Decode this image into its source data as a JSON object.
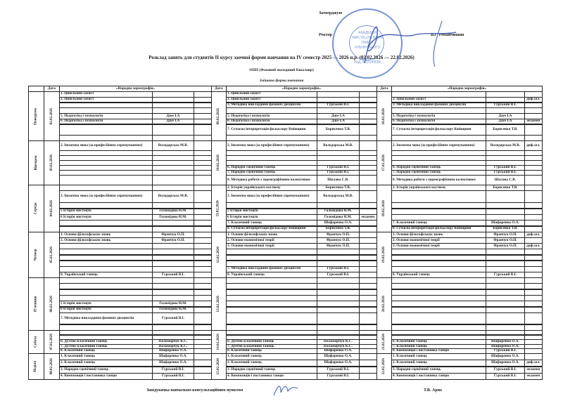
{
  "header": {
    "approve": "Затверджую",
    "rector_label": "Ректор",
    "rector_name": "В.Г. Романчишин",
    "title": "Розклад занять для студентів ІІ курсу заочної форми навчання на  IV семестр 2025 — 2026 н.р. (02.02.2026 — 22.02.2026)",
    "program": "ОПП (Фаховий молодший бакалавр)",
    "form": "Змішана форма навчання"
  },
  "stamp": {
    "text": "АКАДЕМІЯ МИСТЕЦТВ ІМЕНІ ПАВЛА ЧУБИНСЬКОГО",
    "code": "код 02214938",
    "color": "#4a73c7"
  },
  "table": {
    "date_header": "Дата",
    "group_header": "«Народна хореографія»",
    "days": [
      "Понеділок",
      "Вівторок",
      "Середа",
      "Четвер",
      "П'ятниця",
      "Субота",
      "Неділя"
    ],
    "weeks": [
      {
        "dates": [
          "02.02.2026",
          "03.02.2026",
          "04.02.2026",
          "05.02.2026",
          "06.02.2026",
          "07.02.2026",
          "08.02.2026"
        ],
        "rows": [
          [
            [
              "1. Цивільний захист",
              "",
              ""
            ],
            [
              "2. Цивільний захист",
              "",
              ""
            ],
            [
              "",
              "",
              ""
            ],
            [
              "",
              "",
              ""
            ],
            [
              "5. Педагогіка і психологія",
              "Дауе І.А",
              ""
            ],
            [
              "6. Педагогіка і психологія",
              "Дауе І.А",
              ""
            ],
            [
              "",
              "",
              ""
            ],
            [
              "",
              "",
              ""
            ]
          ],
          [
            [
              "2. Іноземна мова (за професійним спрямуванням)",
              "Володарська М.В.",
              ""
            ],
            [
              "",
              "",
              ""
            ],
            [
              "",
              "",
              ""
            ],
            [
              "",
              "",
              ""
            ],
            [
              "",
              "",
              ""
            ],
            [
              "",
              "",
              ""
            ],
            [
              "",
              "",
              ""
            ]
          ],
          [
            [
              "",
              "",
              ""
            ],
            [
              "3. Іноземна мова (за професійним спрямуванням)",
              "Володарська М.В.",
              ""
            ],
            [
              "",
              "",
              ""
            ],
            [
              "5 Історія мистецтв",
              "Голомідова Н.М.",
              ""
            ],
            [
              "6 Історія мистецтв",
              "Голомідова Н.М.",
              ""
            ],
            [
              "",
              "",
              ""
            ],
            [
              "",
              "",
              ""
            ]
          ],
          [
            [
              "1. Основи філософських знань",
              "Франчук О.П.",
              ""
            ],
            [
              "2. Основи філософських знань",
              "Франчук О.П.",
              ""
            ],
            [
              "",
              "",
              ""
            ],
            [
              "",
              "",
              ""
            ],
            [
              "",
              "",
              ""
            ],
            [
              "",
              "",
              ""
            ],
            [
              "",
              "",
              ""
            ],
            [
              "8. Український танець",
              "Гурський В.І.",
              ""
            ]
          ],
          [
            [
              "",
              "",
              ""
            ],
            [
              "",
              "",
              ""
            ],
            [
              "",
              "",
              ""
            ],
            [
              "",
              "",
              ""
            ],
            [
              "5 Історія мистецтв",
              "Голомідова Н.М.",
              ""
            ],
            [
              "6 Історія мистецтв",
              "Голомідова Н.М.",
              ""
            ],
            [
              "7. Методика викладання фахових дисциплін",
              "Гурський В.І.",
              ""
            ],
            [
              "",
              "",
              ""
            ]
          ],
          [
            [
              "",
              "",
              ""
            ],
            [
              "",
              "",
              ""
            ],
            [
              "6. Дуэтно-класичний танець",
              "Паламарчук К.С.",
              ""
            ],
            [
              "7. Дуэтно-класичний танець",
              "Паламарчук К.С.",
              ""
            ],
            [
              "8. Класичний танець",
              "Шафаренко О.А.",
              ""
            ]
          ],
          [
            [
              "1. Класичний танець",
              "Шафаренко О.А.",
              ""
            ],
            [
              "2. Класичний танець",
              "Шафаренко О.А.",
              ""
            ],
            [
              "3. Народно-сценічний танець",
              "Гурський В.І.",
              ""
            ],
            [
              "4. Композиція і постановка танцю",
              "Гурський В.І.",
              ""
            ]
          ]
        ]
      },
      {
        "dates": [
          "09.02.2026",
          "10.02.2026",
          "11.02.2026",
          "12.02.2026",
          "13.02.2026",
          "14.02.2026",
          "15.02.2026"
        ],
        "rows": [
          [
            [
              "1. Цивільний захист",
              "",
              ""
            ],
            [
              "2. Цивільний захист",
              "",
              ""
            ],
            [
              "3. Методика викладання фахових дисциплін",
              "Гурський В.І.",
              ""
            ],
            [
              "",
              "",
              ""
            ],
            [
              "5. Педагогіка і психологія",
              "Дауе І.А",
              ""
            ],
            [
              "6. Педагогіка і психологія",
              "Дауе І.А",
              ""
            ],
            [
              "7. Сучасна інтерпретація фольклору Київщини",
              "Борисенко Т.В.",
              ""
            ],
            [
              "",
              "",
              ""
            ]
          ],
          [
            [
              "2. Іноземна мова (за професійним спрямуванням)",
              "Володарська М.В.",
              ""
            ],
            [
              "",
              "",
              ""
            ],
            [
              "",
              "",
              ""
            ],
            [
              "",
              "",
              ""
            ],
            [
              "6. Народно-сценічний танець",
              "Гурський В.І.",
              ""
            ],
            [
              "7. Народно-сценічний танець",
              "Гурський В.І.",
              ""
            ],
            [
              "8. Методика роботи з хореографічним колективом",
              "Шалава С.В.",
              ""
            ]
          ],
          [
            [
              "2. Історія українського костюму",
              "Борисенко Т.В.",
              ""
            ],
            [
              "3. Іноземна мова (за професійним спрямуванням)",
              "Володарська М.В.",
              ""
            ],
            [
              "",
              "",
              ""
            ],
            [
              "5 Історія мистецтв",
              "Голомідова Н.М.",
              ""
            ],
            [
              "6 Історія мистецтв",
              "Голомідова Н.М.",
              "екзамен"
            ],
            [
              "7. Класичний танець",
              "Шафаренко О.А.",
              ""
            ],
            [
              "8. Сучасна інтерпретація фольклору Київщини",
              "Борисенко Т.В.",
              ""
            ]
          ],
          [
            [
              "1. Основи філософських знань",
              "Франчук О.П.",
              ""
            ],
            [
              "2. Основи економічної теорії",
              "Франчук О.П.",
              ""
            ],
            [
              "3. Основи економічної теорії",
              "Франчук О.П.",
              ""
            ],
            [
              "",
              "",
              ""
            ],
            [
              "",
              "",
              ""
            ],
            [
              "",
              "",
              ""
            ],
            [
              "7. Методика викладання фахових дисциплін",
              "Гурський В.І.",
              ""
            ],
            [
              "8. Український танець",
              "Гурський В.І.",
              ""
            ]
          ],
          [
            [
              "",
              "",
              ""
            ],
            [
              "",
              "",
              ""
            ],
            [
              "",
              "",
              ""
            ],
            [
              "",
              "",
              ""
            ],
            [
              "",
              "",
              ""
            ],
            [
              "",
              "",
              ""
            ],
            [
              "",
              "",
              ""
            ],
            [
              "",
              "",
              ""
            ]
          ],
          [
            [
              "",
              "",
              ""
            ],
            [
              "",
              "",
              ""
            ],
            [
              "6. Дуетно-класичний танець",
              "Паламарчук К.С.",
              ""
            ],
            [
              "7. Дуетно-класичний танець",
              "Паламарчук К.С.",
              ""
            ],
            [
              "8. Класичний танець",
              "Шафаренко О.А.",
              ""
            ]
          ],
          [
            [
              "1. Класичний танець",
              "Шафаренко О.А.",
              ""
            ],
            [
              "2. Класичний танець",
              "Шафаренко О.А.",
              ""
            ],
            [
              "3. Народно-сценічний танець",
              "Гурський В.І.",
              ""
            ],
            [
              "4. Композиція і постановка танцю",
              "Гурський В.І.",
              ""
            ]
          ]
        ]
      },
      {
        "dates": [
          "16.02.2026",
          "17.02.2026",
          "18.02.2026",
          "19.02.2026",
          "20.02.2026",
          "21.02.2026",
          "22.02.2026"
        ],
        "rows": [
          [
            [
              "",
              "",
              ""
            ],
            [
              "2.  Цивільний захист",
              "",
              "диф.зал."
            ],
            [
              "3. Методика викладання фахових дисциплін",
              "Гурський В.І.",
              ""
            ],
            [
              "",
              "",
              ""
            ],
            [
              "5. Педагогіка і психологія",
              "Дауе І.А",
              ""
            ],
            [
              "6. Педагогіка і психологія",
              "Дауе І.А",
              "екзамен"
            ],
            [
              "7. Сучасна інтерпретація фольклору Київщини",
              "Борисенко Т.В.",
              ""
            ],
            [
              "",
              "",
              ""
            ]
          ],
          [
            [
              "2. Іноземна мова (за професійним спрямуванням)",
              "Володарська М.В.",
              "диф.зал."
            ],
            [
              "",
              "",
              ""
            ],
            [
              "",
              "",
              ""
            ],
            [
              "",
              "",
              ""
            ],
            [
              "6. Народно-сценічний танець",
              "Гурський В.І.",
              ""
            ],
            [
              "7. Народно-сценічний танець",
              "Гурський В.І.",
              ""
            ],
            [
              "8. Методика роботи з хореографічним колективом",
              "Шалава С.В.",
              ""
            ]
          ],
          [
            [
              "2. Історія українського костюму",
              "Борисенко Т.В.",
              ""
            ],
            [
              "",
              "",
              ""
            ],
            [
              "",
              "",
              ""
            ],
            [
              "",
              "",
              ""
            ],
            [
              "",
              "",
              ""
            ],
            [
              "7. Класичний танець",
              "Шафаренко О.А.",
              ""
            ],
            [
              "8. Сучасна інтерпретація фольклору Київщини",
              "Борисенко Т.В.",
              ""
            ]
          ],
          [
            [
              "1. Основи філософських знань",
              "Франчук О.П.",
              "диф.зал."
            ],
            [
              "2. Основи економічної теорії",
              "Франчук О.П.",
              ""
            ],
            [
              "3. Основи економічної теорії",
              "Франчук О.П.",
              "диф.зал."
            ],
            [
              "",
              "",
              ""
            ],
            [
              "",
              "",
              ""
            ],
            [
              "",
              "",
              ""
            ],
            [
              "",
              "",
              ""
            ],
            [
              "8. Український танець",
              "Гурський В.І.",
              ""
            ]
          ],
          [
            [
              "",
              "",
              ""
            ],
            [
              "",
              "",
              ""
            ],
            [
              "",
              "",
              ""
            ],
            [
              "",
              "",
              ""
            ],
            [
              "",
              "",
              ""
            ],
            [
              "",
              "",
              ""
            ],
            [
              "",
              "",
              ""
            ],
            [
              "",
              "",
              ""
            ]
          ],
          [
            [
              "",
              "",
              ""
            ],
            [
              "",
              "",
              ""
            ],
            [
              "6. Класичний танець",
              "Шафаренко О.А.",
              ""
            ],
            [
              "7. Класичний танець",
              "Шафаренко О.А.",
              ""
            ],
            [
              "8. Композиція і постановка танцю",
              "Гурський В.І.",
              ""
            ]
          ],
          [
            [
              "1. Класичний танець",
              "Шафаренко О.А.",
              ""
            ],
            [
              "2. Класичний танець",
              "Шафаренко О.А.",
              "диф.зал."
            ],
            [
              "3. Народно-сценічний танець",
              "Гурський В.І.",
              "екзамен"
            ],
            [
              "4. Композиція і постановка танцю",
              "Гурський В.І.",
              "екзамен"
            ]
          ]
        ]
      }
    ]
  },
  "footer": {
    "position": "Завідувачка навчально-консультаційним пунктом",
    "name": "Т.В. Арих"
  }
}
